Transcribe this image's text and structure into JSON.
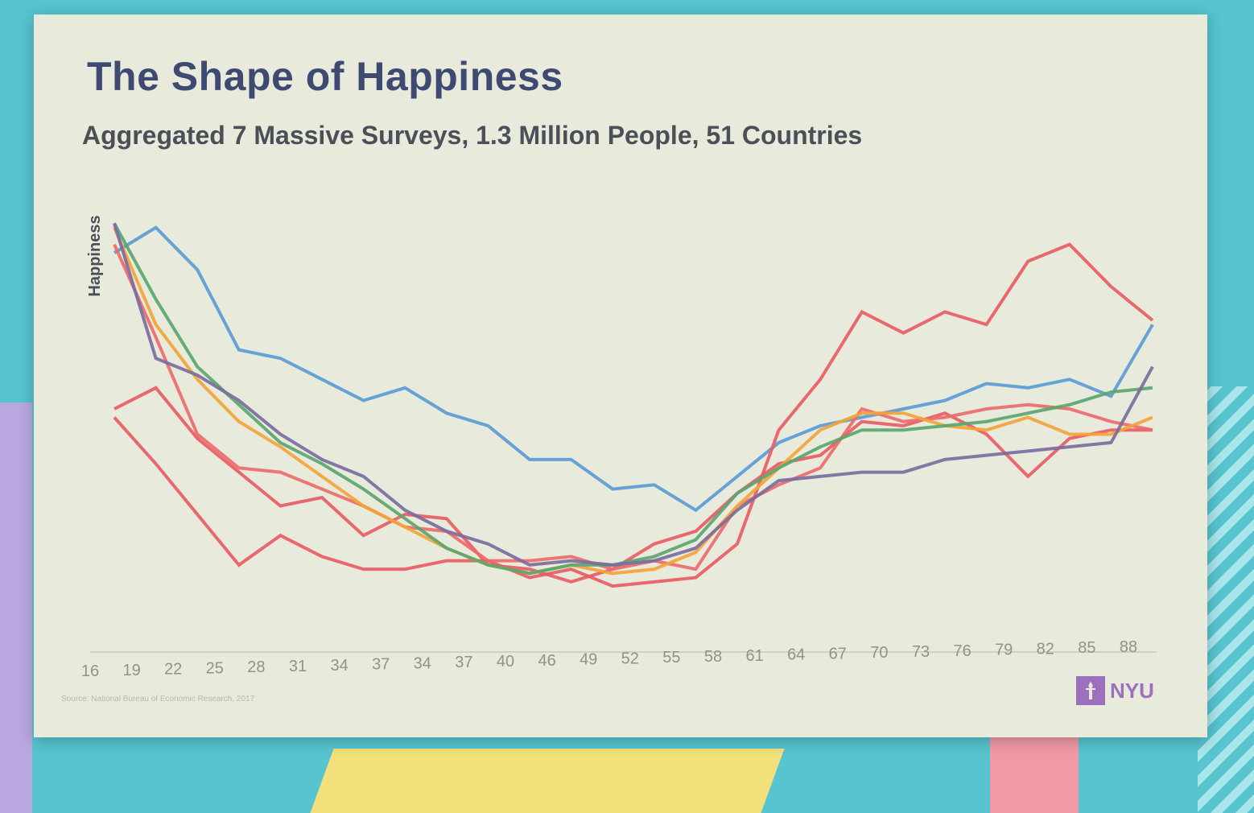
{
  "slide": {
    "title": "The Shape of Happiness",
    "subtitle": "Aggregated 7 Massive Surveys, 1.3 Million People, 51 Countries",
    "source": "Source: National Bureau of Economic Research, 2017",
    "logo_text": "NYU"
  },
  "chart_data": {
    "type": "line",
    "title": "The Shape of Happiness",
    "subtitle": "Aggregated 7 Massive Surveys, 1.3 Million People, 51 Countries",
    "ylabel": "Happiness",
    "xlabel": "",
    "categories": [
      "16",
      "19",
      "22",
      "25",
      "28",
      "31",
      "34",
      "37",
      "34",
      "37",
      "40",
      "46",
      "49",
      "52",
      "55",
      "58",
      "61",
      "64",
      "67",
      "70",
      "73",
      "76",
      "79",
      "82",
      "85",
      "88"
    ],
    "ylim": [
      0,
      100
    ],
    "grid": false,
    "legend": "none",
    "series": [
      {
        "color": "#5b9bd5",
        "values": [
          87,
          93,
          83,
          64,
          62,
          57,
          52,
          55,
          49,
          46,
          38,
          38,
          31,
          32,
          26,
          34,
          42,
          46,
          48,
          50,
          52,
          56,
          55,
          57,
          53,
          70
        ]
      },
      {
        "color": "#e85c63",
        "values": [
          48,
          37,
          25,
          13,
          20,
          15,
          12,
          12,
          14,
          14,
          10,
          12,
          8,
          9,
          10,
          18,
          45,
          57,
          73,
          68,
          73,
          70,
          85,
          89,
          79,
          71
        ]
      },
      {
        "color": "#e85c63",
        "values": [
          50,
          55,
          43,
          35,
          27,
          29,
          20,
          25,
          24,
          13,
          12,
          9,
          12,
          18,
          21,
          30,
          37,
          39,
          47,
          46,
          49,
          44,
          34,
          43,
          45,
          45
        ]
      },
      {
        "color": "#ec6b6b",
        "values": [
          89,
          67,
          44,
          36,
          35,
          31,
          27,
          22,
          21,
          14,
          14,
          15,
          12,
          14,
          12,
          27,
          32,
          36,
          50,
          47,
          48,
          50,
          51,
          50,
          47,
          45
        ]
      },
      {
        "color": "#f2a33a",
        "values": [
          93,
          70,
          57,
          47,
          41,
          34,
          27,
          22,
          17,
          13,
          11,
          13,
          11,
          12,
          16,
          27,
          36,
          45,
          49,
          49,
          46,
          45,
          48,
          44,
          44,
          48
        ]
      },
      {
        "color": "#5aa66f",
        "values": [
          94,
          76,
          60,
          51,
          42,
          37,
          31,
          24,
          17,
          13,
          11,
          13,
          13,
          15,
          19,
          30,
          36,
          41,
          45,
          45,
          46,
          47,
          49,
          51,
          54,
          55
        ]
      },
      {
        "color": "#7a6c9e",
        "values": [
          94,
          62,
          58,
          52,
          44,
          38,
          34,
          26,
          21,
          18,
          13,
          14,
          13,
          14,
          17,
          26,
          33,
          34,
          35,
          35,
          38,
          39,
          40,
          41,
          42,
          60
        ]
      }
    ]
  }
}
